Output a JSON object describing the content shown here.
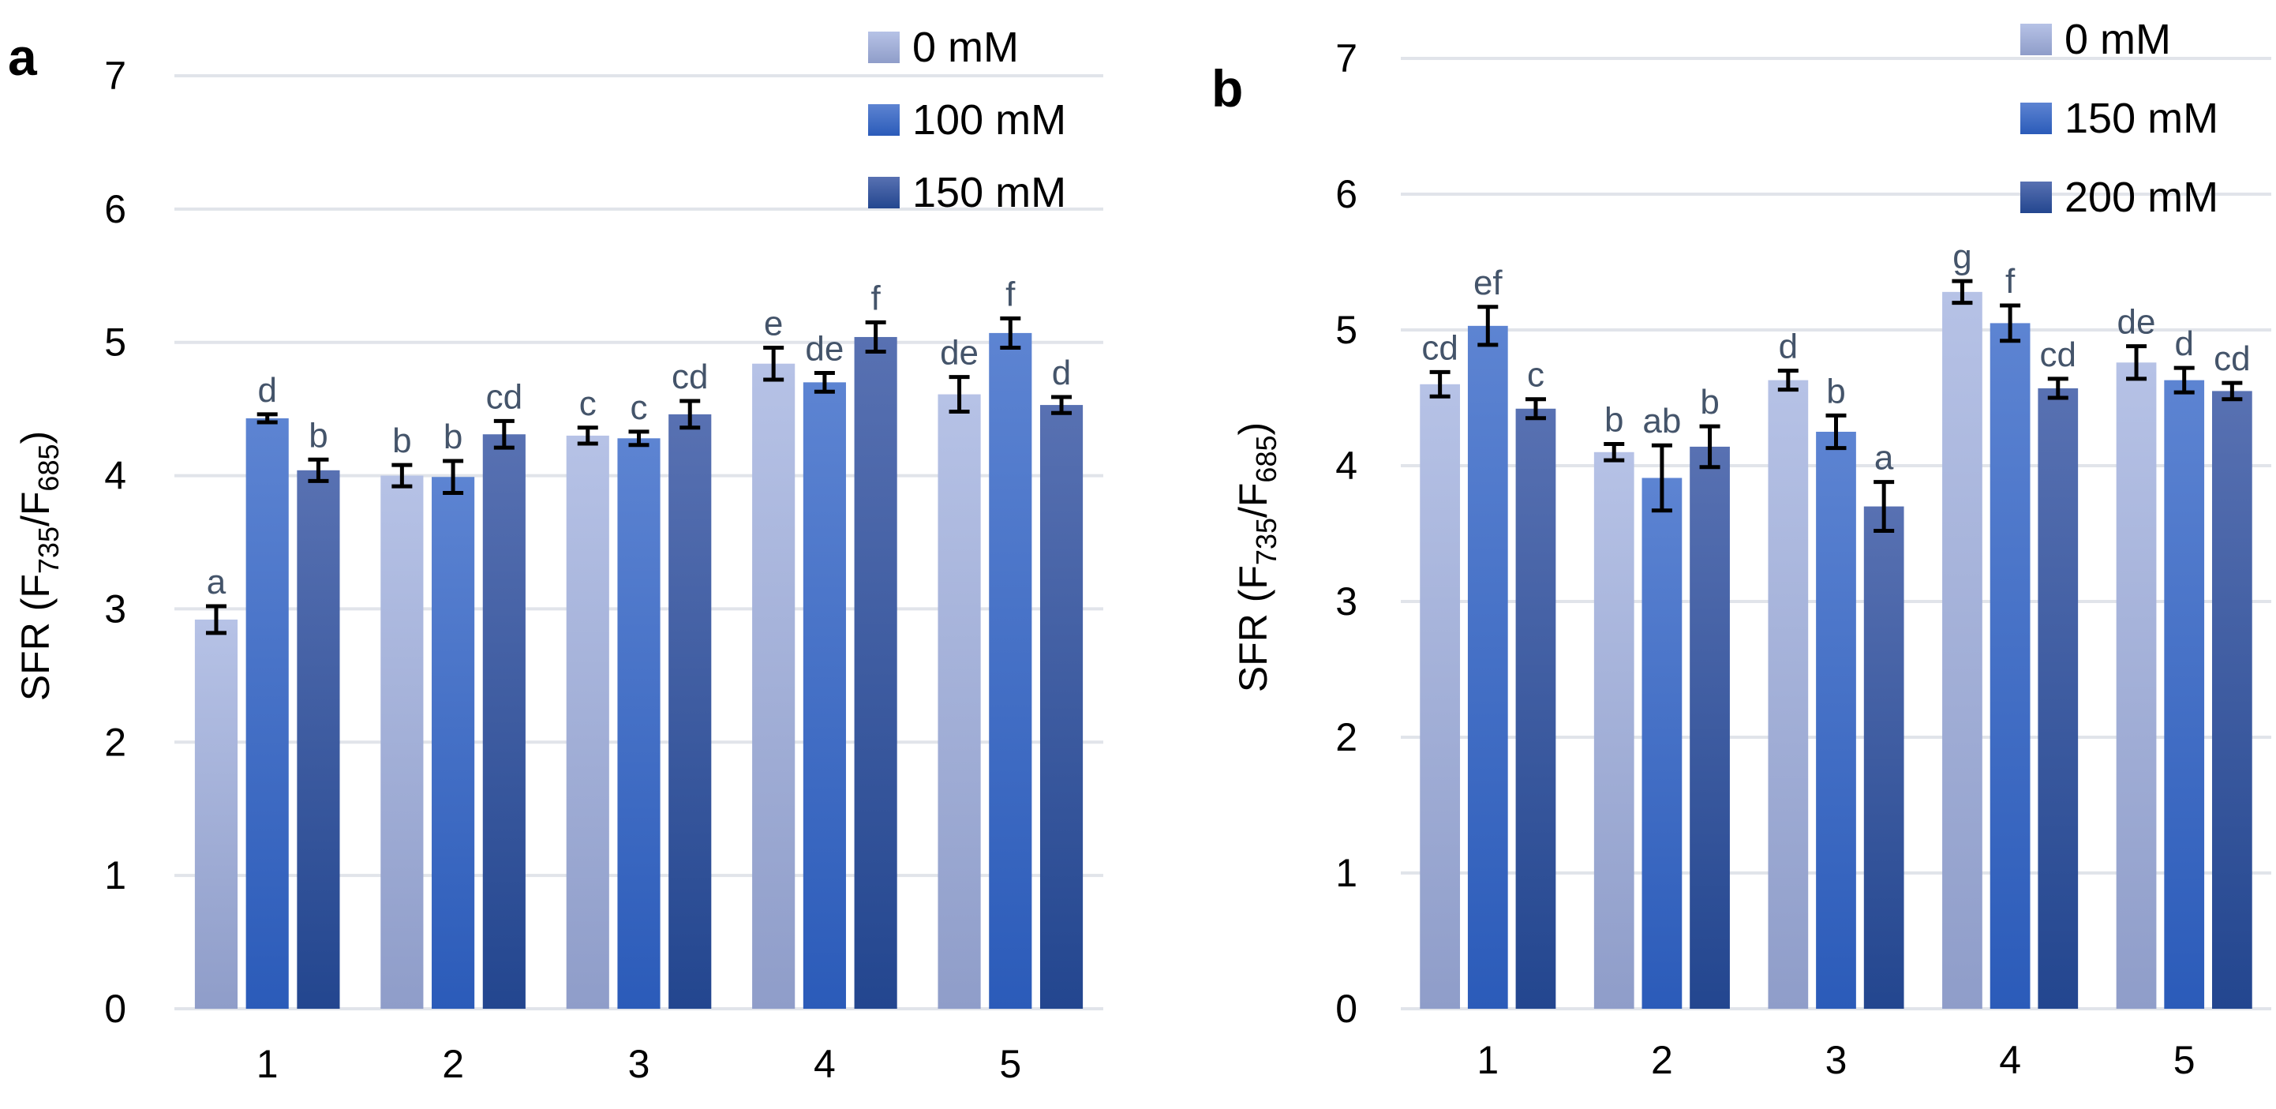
{
  "colors": {
    "series0_top": "#b6c2e6",
    "series0_bottom": "#8f9dc9",
    "series1_top": "#5d84d2",
    "series1_bottom": "#2b5bb9",
    "series2_top": "#5871b2",
    "series2_bottom": "#23468f",
    "grid": "#e1e4ea",
    "sig": "#44546a"
  },
  "chart_data": [
    {
      "panel": "a",
      "type": "bar",
      "ylabel": "SFR (F735/F685)",
      "ylabel_parts": {
        "main": "SFR (F",
        "sub1": "735",
        "mid": "/F",
        "sub2": "685",
        "end": ")"
      },
      "ylim": [
        0,
        7
      ],
      "yticks": [
        "0",
        "1",
        "2",
        "3",
        "4",
        "5",
        "6",
        "7"
      ],
      "grid": true,
      "legend_position": "top-right",
      "categories": [
        "1",
        "2",
        "3",
        "4",
        "5"
      ],
      "series": [
        {
          "name": "0 mM",
          "values": [
            2.92,
            4.0,
            4.3,
            4.84,
            4.61
          ],
          "errors": [
            0.1,
            0.08,
            0.06,
            0.12,
            0.13
          ],
          "letters": [
            "a",
            "b",
            "c",
            "e",
            "de"
          ]
        },
        {
          "name": "100 mM",
          "values": [
            4.43,
            3.99,
            4.28,
            4.7,
            5.07
          ],
          "errors": [
            0.03,
            0.12,
            0.05,
            0.07,
            0.11
          ],
          "letters": [
            "d",
            "b",
            "c",
            "de",
            "f"
          ]
        },
        {
          "name": "150 mM",
          "values": [
            4.04,
            4.31,
            4.46,
            5.04,
            4.53
          ],
          "errors": [
            0.08,
            0.1,
            0.1,
            0.11,
            0.06
          ],
          "letters": [
            "b",
            "cd",
            "cd",
            "f",
            "d"
          ]
        }
      ]
    },
    {
      "panel": "b",
      "type": "bar",
      "ylabel": "SFR (F735/F685)",
      "ylabel_parts": {
        "main": "SFR (F",
        "sub1": "735",
        "mid": "/F",
        "sub2": "685",
        "end": ")"
      },
      "ylim": [
        0,
        7
      ],
      "yticks": [
        "0",
        "1",
        "2",
        "3",
        "4",
        "5",
        "6",
        "7"
      ],
      "grid": true,
      "legend_position": "top-right",
      "categories": [
        "1",
        "2",
        "3",
        "4",
        "5"
      ],
      "series": [
        {
          "name": "0 mM",
          "values": [
            4.6,
            4.1,
            4.63,
            5.28,
            4.76
          ],
          "errors": [
            0.09,
            0.06,
            0.07,
            0.08,
            0.12
          ],
          "letters": [
            "cd",
            "b",
            "d",
            "g",
            "de"
          ]
        },
        {
          "name": "150 mM",
          "values": [
            5.03,
            3.91,
            4.25,
            5.05,
            4.63
          ],
          "errors": [
            0.14,
            0.24,
            0.12,
            0.13,
            0.09
          ],
          "letters": [
            "ef",
            "ab",
            "b",
            "f",
            "d"
          ]
        },
        {
          "name": "200 mM",
          "values": [
            4.42,
            4.14,
            3.7,
            4.57,
            4.55
          ],
          "errors": [
            0.07,
            0.15,
            0.18,
            0.07,
            0.06
          ],
          "letters": [
            "c",
            "b",
            "a",
            "cd",
            "cd"
          ]
        }
      ]
    }
  ]
}
